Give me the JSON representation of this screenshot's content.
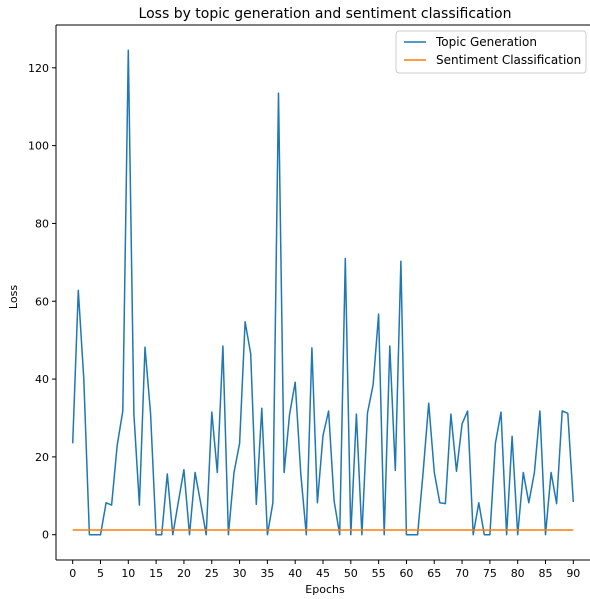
{
  "chart_data": {
    "type": "line",
    "title": "Loss by topic generation and sentiment classification",
    "xlabel": "Epochs",
    "ylabel": "Loss",
    "xlim": [
      -3,
      93
    ],
    "ylim": [
      -6.5,
      131
    ],
    "xticks": [
      0,
      5,
      10,
      15,
      20,
      25,
      30,
      35,
      40,
      45,
      50,
      55,
      60,
      65,
      70,
      75,
      80,
      85,
      90
    ],
    "yticks": [
      0,
      20,
      40,
      60,
      80,
      100,
      120
    ],
    "grid": false,
    "legend_position": "top-right",
    "series": [
      {
        "name": "Topic Generation",
        "color": "#1f77b4",
        "x": [
          0,
          1,
          2,
          3,
          4,
          5,
          6,
          7,
          8,
          9,
          10,
          11,
          12,
          13,
          14,
          15,
          16,
          17,
          18,
          19,
          20,
          21,
          22,
          23,
          24,
          25,
          26,
          27,
          28,
          29,
          30,
          31,
          32,
          33,
          34,
          35,
          36,
          37,
          38,
          39,
          40,
          41,
          42,
          43,
          44,
          45,
          46,
          47,
          48,
          49,
          50,
          51,
          52,
          53,
          54,
          55,
          56,
          57,
          58,
          59,
          60,
          61,
          62,
          63,
          64,
          65,
          66,
          67,
          68,
          69,
          70,
          71,
          72,
          73,
          74,
          75,
          76,
          77,
          78,
          79,
          80,
          81,
          82,
          83,
          84,
          85,
          86,
          87,
          88,
          89,
          90
        ],
        "y": [
          23.5,
          62.8,
          40,
          0,
          0,
          0,
          8.2,
          7.6,
          23,
          31.8,
          124.5,
          31,
          7.6,
          48.2,
          31,
          0,
          0,
          15.6,
          0,
          8.5,
          16.7,
          0,
          16,
          8.2,
          0,
          31.5,
          16,
          48.5,
          0,
          16,
          23.5,
          54.7,
          46.5,
          7.8,
          32.5,
          0,
          8.2,
          113.5,
          16,
          31,
          39.2,
          15.6,
          0,
          48,
          8.2,
          25.5,
          31.8,
          8.7,
          0,
          71,
          0,
          31,
          0,
          31.3,
          38.5,
          56.7,
          0,
          48.5,
          16.5,
          70.3,
          0,
          0,
          0,
          16,
          33.8,
          16,
          8.2,
          8,
          31,
          16.3,
          28.5,
          31.8,
          0,
          8.2,
          0,
          0,
          23.5,
          31.5,
          0,
          25.3,
          0,
          16,
          8.2,
          16,
          31.8,
          0,
          16,
          8,
          31.8,
          31.2,
          8.4
        ]
      },
      {
        "name": "Sentiment Classification",
        "color": "#ff7f0e",
        "x": [
          0,
          90
        ],
        "y": [
          1.2,
          1.2
        ]
      }
    ]
  }
}
